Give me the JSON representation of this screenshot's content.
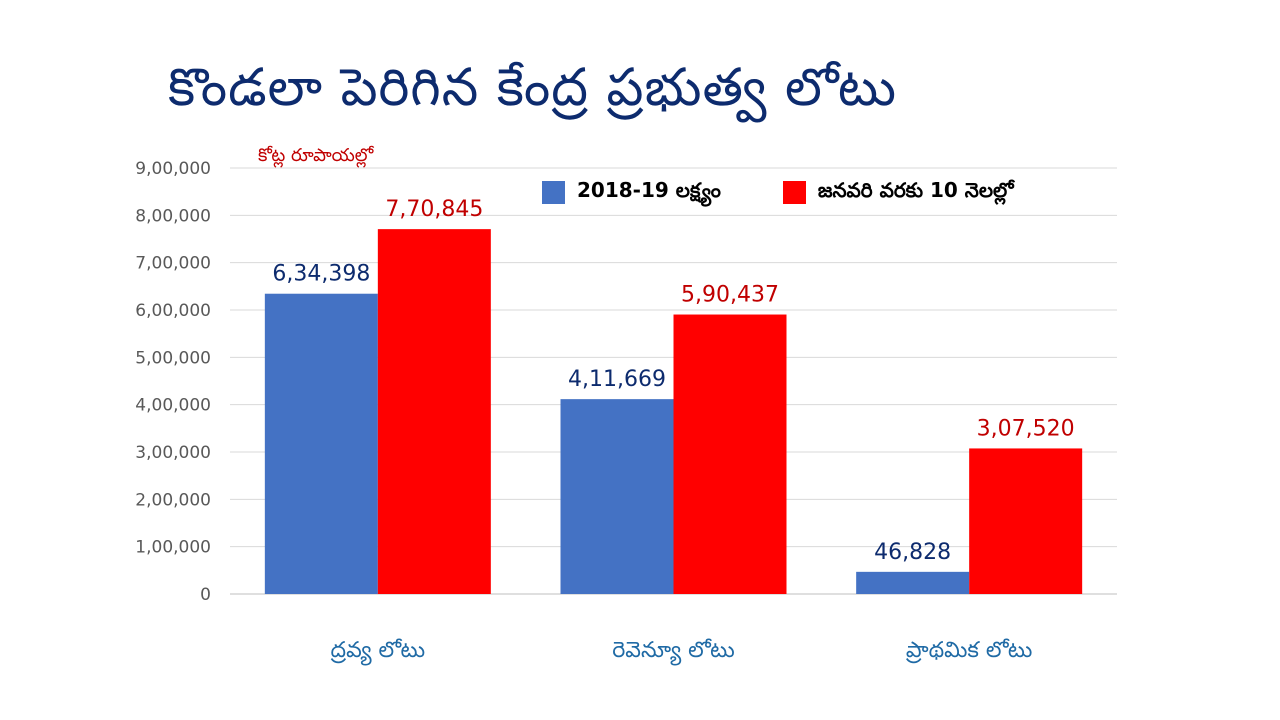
{
  "slide": {
    "title": "కొండలా పెరిగిన కేంద్ర ప్రభుత్వ లోటు",
    "unit_note": "కోట్ల రూపాయల్లో"
  },
  "chart_data": {
    "type": "bar",
    "title": "కొండలా పెరిగిన కేంద్ర ప్రభుత్వ లోటు",
    "ylabel": "కోట్ల రూపాయల్లో",
    "categories": [
      "ద్రవ్య లోటు",
      "రెవెన్యూ లోటు",
      "ప్రాథమిక లోటు"
    ],
    "series": [
      {
        "name": "2018-19 లక్ష్యం",
        "color": "#4472c4",
        "label_color": "#0d2b6e",
        "values": [
          634398,
          411669,
          46828
        ],
        "labels": [
          "6,34,398",
          "4,11,669",
          "46,828"
        ]
      },
      {
        "name": "జనవరి వరకు 10 నెలల్లో",
        "color": "#ff0000",
        "label_color": "#c00000",
        "values": [
          770845,
          590437,
          307520
        ],
        "labels": [
          "7,70,845",
          "5,90,437",
          "3,07,520"
        ]
      }
    ],
    "ylim": [
      0,
      900000
    ],
    "yticks": [
      0,
      100000,
      200000,
      300000,
      400000,
      500000,
      600000,
      700000,
      800000,
      900000
    ],
    "ytick_labels": [
      "0",
      "1,00,000",
      "2,00,000",
      "3,00,000",
      "4,00,000",
      "5,00,000",
      "6,00,000",
      "7,00,000",
      "8,00,000",
      "9,00,000"
    ],
    "grid": true,
    "legend_position": "top-right",
    "category_label_color": "#1f6aa5"
  }
}
